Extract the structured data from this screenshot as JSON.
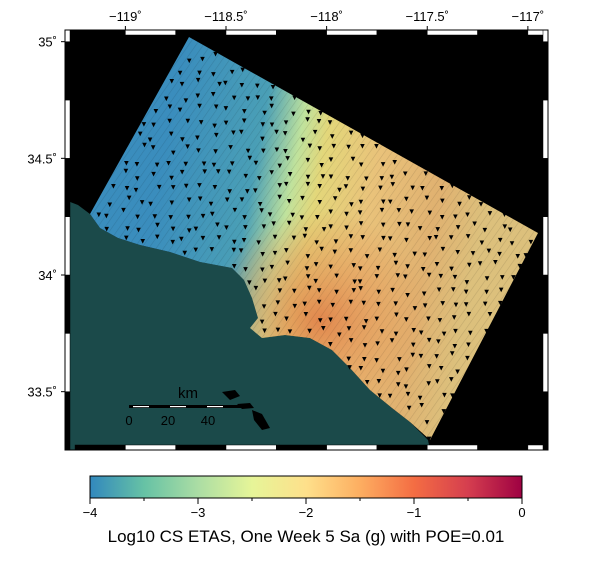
{
  "map": {
    "lon_ticks": [
      {
        "value": -119,
        "label": "−119˚"
      },
      {
        "value": -118.5,
        "label": "−118.5˚"
      },
      {
        "value": -118,
        "label": "−118˚"
      },
      {
        "value": -117.5,
        "label": "−117.5˚"
      },
      {
        "value": -117,
        "label": "−117˚"
      }
    ],
    "lat_ticks": [
      {
        "value": 35,
        "label": "35˚"
      },
      {
        "value": 34.5,
        "label": "34.5˚"
      },
      {
        "value": 34,
        "label": "34˚"
      },
      {
        "value": 33.5,
        "label": "33.5˚"
      }
    ],
    "lon_range": [
      -119.3,
      -116.9
    ],
    "lat_range": [
      33.25,
      35.05
    ],
    "scale_bar": {
      "unit": "km",
      "labels": [
        "0",
        "20",
        "40"
      ]
    },
    "colors": {
      "frame_black": "#000000",
      "ocean": "#1b4a4a",
      "land_nodata": "#000000",
      "station_marker": "#000000"
    }
  },
  "colorbar": {
    "min": -4,
    "max": 0,
    "tick_labels": [
      "−4",
      "−3",
      "−2",
      "−1",
      "0"
    ],
    "colors": [
      "#3288bd",
      "#66c2a5",
      "#abdda4",
      "#e6f598",
      "#fee08b",
      "#fdae61",
      "#f46d43",
      "#d53e4f",
      "#9e0142"
    ],
    "label": "Log10 CS ETAS, One Week 5 Sa (g) with POE=0.01"
  }
}
